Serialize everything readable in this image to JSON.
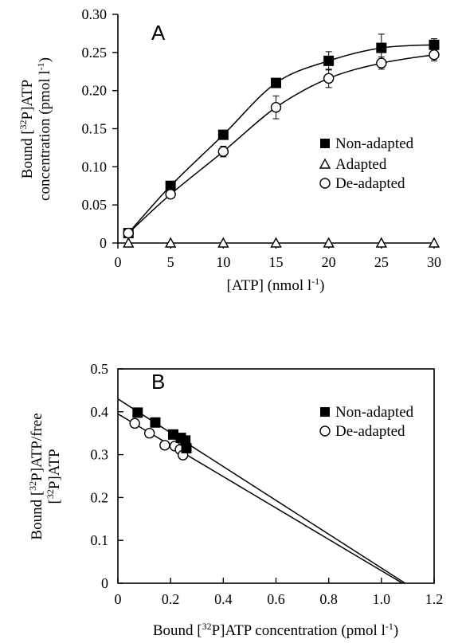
{
  "chart_data": [
    {
      "type": "line",
      "panel_label": "A",
      "xlabel": {
        "main": "[ATP] (nmol l",
        "sup": "-1",
        "end": ")"
      },
      "ylabel": {
        "line1_pre": "Bound [",
        "line1_sup": "32",
        "line1_post": "P]ATP",
        "line2_pre": "concentration (pmol l",
        "line2_sup": "-1",
        "line2_post": ")"
      },
      "xlim": [
        0,
        30
      ],
      "ylim": [
        0,
        0.3
      ],
      "xticks": [
        "0",
        "5",
        "10",
        "15",
        "20",
        "25",
        "30"
      ],
      "yticks": [
        "0",
        "0.05",
        "0.10",
        "0.15",
        "0.20",
        "0.25",
        "0.30"
      ],
      "x": [
        1,
        5,
        10,
        15,
        20,
        25,
        30
      ],
      "legend_position": "right",
      "series": [
        {
          "name": "Non-adapted",
          "marker": "filled-square",
          "values": [
            0.013,
            0.075,
            0.142,
            0.21,
            0.239,
            0.256,
            0.26
          ],
          "errors": [
            0,
            0,
            0,
            0,
            0.012,
            0.018,
            0.008
          ]
        },
        {
          "name": "Adapted",
          "marker": "open-triangle",
          "values": [
            0,
            0,
            0,
            0,
            0,
            0,
            0
          ],
          "errors": [
            0,
            0,
            0,
            0,
            0,
            0,
            0
          ]
        },
        {
          "name": "De-adapted",
          "marker": "open-circle",
          "values": [
            0.013,
            0.064,
            0.12,
            0.178,
            0.216,
            0.236,
            0.247
          ],
          "errors": [
            0,
            0,
            0.007,
            0.015,
            0.012,
            0.008,
            0.008
          ]
        }
      ]
    },
    {
      "type": "scatter",
      "panel_label": "B",
      "xlabel": {
        "pre": "Bound [",
        "sup": "32",
        "mid": "P]ATP concentration (pmol l",
        "sup2": "-1",
        "end": ")"
      },
      "ylabel": {
        "line1_pre": "Bound [",
        "line1_sup": "32",
        "line1_post": "P]ATP/free",
        "line2_pre": "[",
        "line2_sup": "32",
        "line2_post": "P]ATP"
      },
      "xlim": [
        0,
        1.2
      ],
      "ylim": [
        0,
        0.5
      ],
      "xticks": [
        "0",
        "0.2",
        "0.4",
        "0.6",
        "0.8",
        "1.0",
        "1.2"
      ],
      "yticks": [
        "0",
        "0.1",
        "0.2",
        "0.3",
        "0.4",
        "0.5"
      ],
      "legend_position": "right",
      "series": [
        {
          "name": "Non-adapted",
          "marker": "filled-square",
          "x": [
            0.075,
            0.142,
            0.21,
            0.239,
            0.256,
            0.26
          ],
          "y": [
            0.398,
            0.375,
            0.347,
            0.339,
            0.333,
            0.315
          ],
          "fit": {
            "intercept": 0.43,
            "x_intercept": 1.09
          }
        },
        {
          "name": "De-adapted",
          "marker": "open-circle",
          "x": [
            0.064,
            0.12,
            0.178,
            0.216,
            0.236,
            0.247
          ],
          "y": [
            0.373,
            0.35,
            0.322,
            0.32,
            0.312,
            0.299
          ],
          "fit": {
            "intercept": 0.395,
            "x_intercept": 1.08
          }
        }
      ]
    }
  ]
}
